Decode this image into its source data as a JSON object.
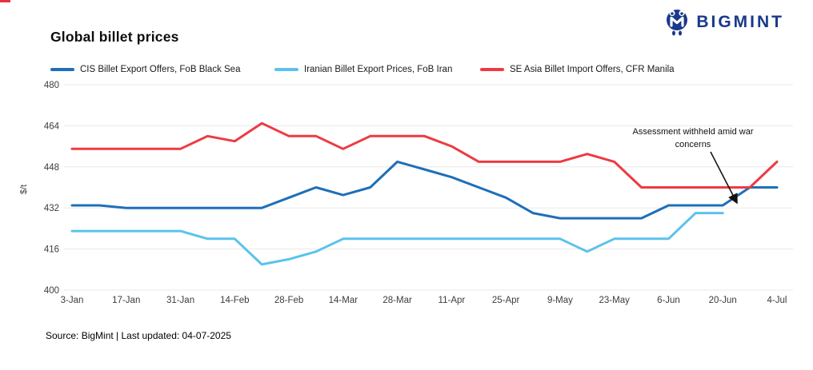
{
  "logo": {
    "text": "BIGMINT",
    "color": "#19398a"
  },
  "title": "Global billet prices",
  "legend": [
    {
      "label": "CIS Billet Export Offers, FoB Black Sea",
      "color": "#1e6fb8"
    },
    {
      "label": "Iranian Billet Export Prices, FoB Iran",
      "color": "#5bc2ec"
    },
    {
      "label": "SE Asia Billet Import Offers, CFR Manila",
      "color": "#ee3a42"
    }
  ],
  "source_note": "Source: BigMint | Last updated: 04-07-2025",
  "colors": {
    "grid": "#e8e8e8",
    "axis_text": "#3c3c3c",
    "annotation_text": "#111111",
    "corner_dash": "#e5343f"
  },
  "chart_data": {
    "type": "line",
    "title": "Global billet prices",
    "xlabel": "",
    "ylabel": "$/t",
    "ylim": [
      400,
      480
    ],
    "yticks": [
      400,
      416,
      432,
      448,
      464,
      480
    ],
    "grid": "horizontal",
    "legend_position": "top",
    "x": [
      "3-Jan",
      "10-Jan",
      "17-Jan",
      "24-Jan",
      "31-Jan",
      "7-Feb",
      "14-Feb",
      "21-Feb",
      "28-Feb",
      "7-Mar",
      "14-Mar",
      "21-Mar",
      "28-Mar",
      "4-Apr",
      "11-Apr",
      "18-Apr",
      "25-Apr",
      "2-May",
      "9-May",
      "16-May",
      "23-May",
      "30-May",
      "6-Jun",
      "13-Jun",
      "20-Jun",
      "27-Jun",
      "4-Jul"
    ],
    "xtick_every": 2,
    "series": [
      {
        "name": "CIS Billet Export Offers, FoB Black Sea",
        "color": "#1e6fb8",
        "values": [
          433,
          433,
          432,
          432,
          432,
          432,
          432,
          432,
          436,
          440,
          437,
          440,
          450,
          447,
          444,
          440,
          436,
          430,
          428,
          428,
          428,
          428,
          433,
          433,
          433,
          440,
          440
        ]
      },
      {
        "name": "Iranian Billet Export Prices, FoB Iran",
        "color": "#5bc2ec",
        "values": [
          423,
          423,
          423,
          423,
          423,
          420,
          420,
          410,
          412,
          415,
          420,
          420,
          420,
          420,
          420,
          420,
          420,
          420,
          420,
          415,
          420,
          420,
          420,
          430,
          430,
          null,
          null
        ]
      },
      {
        "name": "SE Asia Billet Import Offers, CFR Manila",
        "color": "#ee3a42",
        "values": [
          455,
          455,
          455,
          455,
          455,
          460,
          458,
          465,
          460,
          460,
          455,
          460,
          460,
          460,
          456,
          450,
          450,
          450,
          450,
          453,
          450,
          440,
          440,
          440,
          440,
          440,
          450
        ]
      }
    ],
    "annotation": {
      "line1": "Assessment withheld amid war",
      "line2": "concerns",
      "arrow_from": [
        888,
        190
      ],
      "arrow_to": [
        921,
        254
      ],
      "text_center_x": 866,
      "text_y1": 168,
      "text_y2": 184
    }
  }
}
